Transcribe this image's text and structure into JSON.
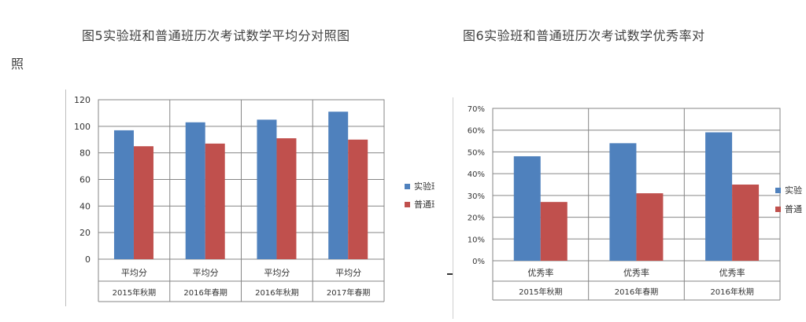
{
  "captions": {
    "left_line1": "图5实验班和普通班历次考试数学平均分对照图",
    "left_line2": "照",
    "right_line1": "图6实验班和普通班历次考试数学优秀率对"
  },
  "colors": {
    "experimental": "#4F81BD",
    "regular": "#C0504D",
    "grid": "#868686"
  },
  "chart_data": [
    {
      "type": "bar",
      "title": "",
      "categories": [
        "平均分",
        "平均分",
        "平均分",
        "平均分"
      ],
      "sub_categories": [
        "2015年秋期",
        "2016年春期",
        "2016年秋期",
        "2017年春期"
      ],
      "series": [
        {
          "name": "实验班",
          "values": [
            97,
            103,
            105,
            111
          ]
        },
        {
          "name": "普通班",
          "values": [
            85,
            87,
            91,
            90
          ]
        }
      ],
      "ylim": [
        0,
        120
      ],
      "yticks": [
        "0",
        "20",
        "40",
        "60",
        "80",
        "100",
        "120"
      ],
      "grid": true,
      "legend": "right"
    },
    {
      "type": "bar",
      "title": "",
      "categories": [
        "优秀率",
        "优秀率",
        "优秀率"
      ],
      "sub_categories": [
        "2015年秋期",
        "2016年春期",
        "2016年秋期"
      ],
      "series": [
        {
          "name": "实验",
          "values": [
            48,
            54,
            59
          ]
        },
        {
          "name": "普通",
          "values": [
            27,
            31,
            35
          ]
        }
      ],
      "ylim": [
        0,
        70
      ],
      "yticks": [
        "0%",
        "10%",
        "20%",
        "30%",
        "40%",
        "50%",
        "60%",
        "70%"
      ],
      "grid": true,
      "legend": "right"
    }
  ]
}
